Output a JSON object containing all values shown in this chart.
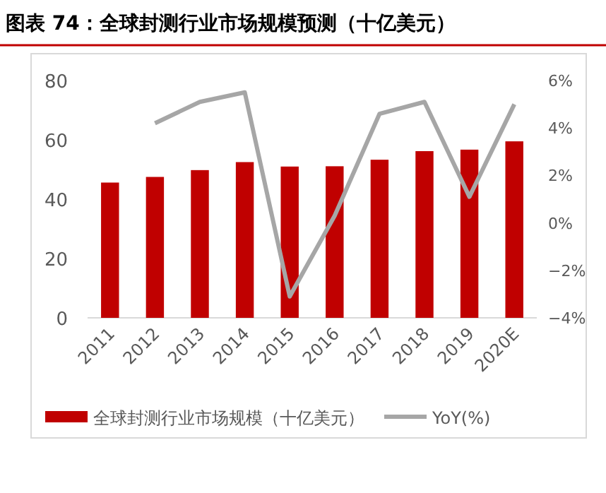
{
  "chart_data": {
    "type": "bar",
    "title": "图表 74：全球封测行业市场规模预测（十亿美元）",
    "categories": [
      "2011",
      "2012",
      "2013",
      "2014",
      "2015",
      "2016",
      "2017",
      "2018",
      "2019",
      "2020E"
    ],
    "series": [
      {
        "name": "全球封测行业市场规模（十亿美元）",
        "color": "#c00000",
        "values": [
          45.6,
          47.5,
          49.8,
          52.5,
          51.0,
          51.1,
          53.3,
          56.2,
          56.7,
          59.5
        ]
      },
      {
        "name": "YoY(%)",
        "type": "line",
        "axis": "y2",
        "color": "#a6a6a6",
        "values": [
          null,
          4.2,
          5.1,
          5.5,
          -3.1,
          0.3,
          4.6,
          5.1,
          1.1,
          5.0
        ]
      }
    ],
    "ylim": [
      0,
      80
    ],
    "yticks": [
      0,
      20,
      40,
      60,
      80
    ],
    "y2lim": [
      -4,
      6
    ],
    "y2ticks": [
      {
        "value": -4,
        "label": "−4%"
      },
      {
        "value": -2,
        "label": "−2%"
      },
      {
        "value": 0,
        "label": "0%"
      },
      {
        "value": 2,
        "label": "2%"
      },
      {
        "value": 4,
        "label": "4%"
      },
      {
        "value": 6,
        "label": "6%"
      }
    ],
    "grid": false,
    "legend": "bottom"
  }
}
